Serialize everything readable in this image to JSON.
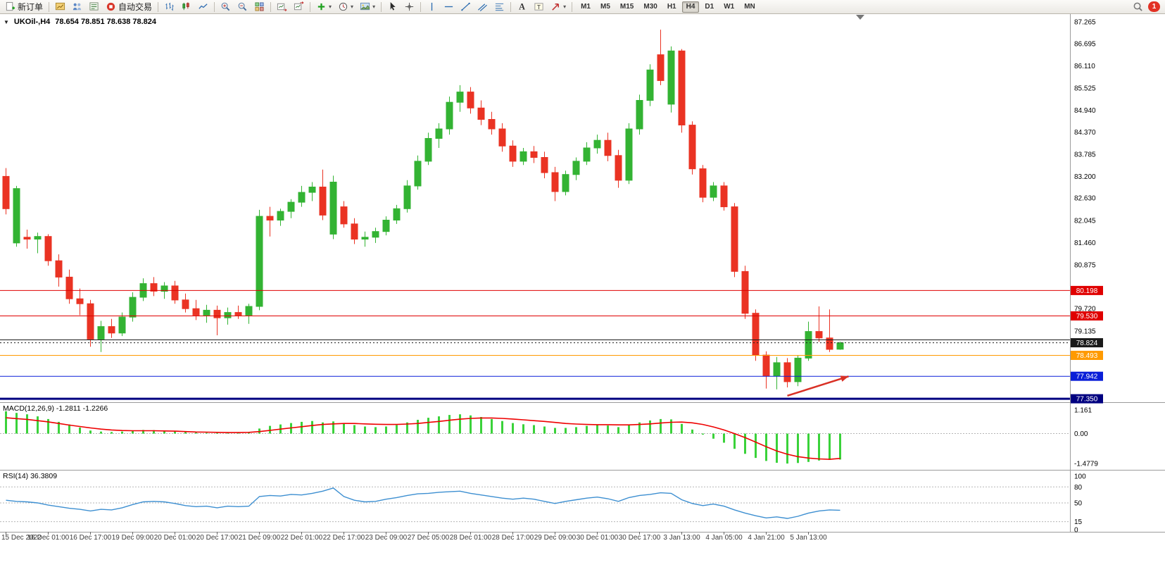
{
  "toolbar": {
    "new_order_label": "新订单",
    "autotrade_label": "自动交易",
    "timeframes": [
      "M1",
      "M5",
      "M15",
      "M30",
      "H1",
      "H4",
      "D1",
      "W1",
      "MN"
    ],
    "active_timeframe": "H4",
    "notification_badge": "1"
  },
  "chart_header": {
    "collapse_arrow": "▼",
    "symbol_period": "UKOil-,H4",
    "ohlc": "78.654 78.851 78.638 78.824"
  },
  "colors": {
    "bull": "#33b333",
    "bear": "#ea3323",
    "macd_bar": "#3ad23a",
    "macd_signal": "#ee0000",
    "rsi_line": "#3d8fd1",
    "arrow": "#d93025",
    "level_red": "#e00000",
    "level_orange": "#ff9a00",
    "level_blue": "#0a1fd8",
    "level_navy": "#000080"
  },
  "chart_data": [
    {
      "type": "candlestick",
      "symbol": "UKOil-",
      "period": "H4",
      "y_range": [
        77.26,
        87.47
      ],
      "y_axis_labels": [
        "87.265",
        "86.695",
        "86.110",
        "85.525",
        "84.940",
        "84.370",
        "83.785",
        "83.200",
        "82.630",
        "82.045",
        "81.460",
        "80.875",
        "79.720",
        "79.135"
      ],
      "x_label_every": 4,
      "x_labels": [
        "15 Dec 2022",
        "16 Dec 01:00",
        "16 Dec 17:00",
        "19 Dec 09:00",
        "20 Dec 01:00",
        "20 Dec 17:00",
        "21 Dec 09:00",
        "22 Dec 01:00",
        "22 Dec 17:00",
        "23 Dec 09:00",
        "27 Dec 05:00",
        "28 Dec 01:00",
        "28 Dec 17:00",
        "29 Dec 09:00",
        "30 Dec 01:00",
        "30 Dec 17:00",
        "3 Jan 13:00",
        "4 Jan 05:00",
        "4 Jan 21:00",
        "5 Jan 13:00"
      ],
      "candles": [
        [
          83.2,
          83.42,
          82.2,
          82.35
        ],
        [
          81.45,
          82.95,
          81.35,
          82.88
        ],
        [
          81.6,
          81.8,
          81.3,
          81.55
        ],
        [
          81.55,
          81.72,
          81.18,
          81.62
        ],
        [
          81.62,
          81.68,
          80.85,
          80.98
        ],
        [
          80.98,
          81.15,
          80.3,
          80.55
        ],
        [
          80.55,
          80.75,
          79.85,
          79.98
        ],
        [
          79.98,
          80.25,
          79.55,
          79.85
        ],
        [
          79.85,
          79.95,
          78.72,
          78.92
        ],
        [
          78.92,
          79.4,
          78.58,
          79.25
        ],
        [
          79.25,
          79.45,
          78.95,
          79.08
        ],
        [
          79.08,
          79.62,
          79.0,
          79.5
        ],
        [
          79.5,
          80.15,
          79.38,
          80.02
        ],
        [
          80.02,
          80.52,
          79.92,
          80.38
        ],
        [
          80.38,
          80.55,
          80.05,
          80.18
        ],
        [
          80.18,
          80.42,
          79.98,
          80.32
        ],
        [
          80.32,
          80.45,
          79.85,
          79.95
        ],
        [
          79.95,
          80.12,
          79.62,
          79.72
        ],
        [
          79.72,
          79.95,
          79.42,
          79.55
        ],
        [
          79.55,
          79.82,
          79.35,
          79.68
        ],
        [
          79.68,
          79.8,
          79.02,
          79.48
        ],
        [
          79.48,
          79.75,
          79.3,
          79.62
        ],
        [
          79.62,
          79.8,
          79.45,
          79.55
        ],
        [
          79.55,
          79.85,
          79.32,
          79.78
        ],
        [
          79.78,
          82.32,
          79.68,
          82.15
        ],
        [
          82.15,
          82.4,
          81.62,
          82.05
        ],
        [
          82.05,
          82.35,
          81.9,
          82.28
        ],
        [
          82.28,
          82.6,
          82.1,
          82.52
        ],
        [
          82.52,
          82.95,
          82.4,
          82.78
        ],
        [
          82.78,
          83.05,
          82.55,
          82.92
        ],
        [
          82.92,
          83.38,
          82.05,
          82.18
        ],
        [
          81.68,
          83.22,
          81.55,
          83.05
        ],
        [
          82.4,
          82.55,
          81.85,
          81.95
        ],
        [
          81.95,
          82.1,
          81.42,
          81.55
        ],
        [
          81.55,
          81.75,
          81.35,
          81.6
        ],
        [
          81.6,
          81.85,
          81.45,
          81.75
        ],
        [
          81.75,
          82.15,
          81.65,
          82.05
        ],
        [
          82.05,
          82.45,
          81.95,
          82.35
        ],
        [
          82.35,
          83.1,
          82.25,
          82.95
        ],
        [
          82.95,
          83.75,
          82.85,
          83.6
        ],
        [
          83.6,
          84.35,
          83.5,
          84.2
        ],
        [
          84.2,
          84.6,
          83.95,
          84.45
        ],
        [
          84.45,
          85.3,
          84.3,
          85.15
        ],
        [
          85.15,
          85.6,
          84.9,
          85.42
        ],
        [
          85.42,
          85.55,
          84.85,
          85.0
        ],
        [
          85.0,
          85.2,
          84.55,
          84.7
        ],
        [
          84.7,
          84.9,
          84.3,
          84.45
        ],
        [
          84.45,
          84.6,
          83.85,
          84.0
        ],
        [
          84.0,
          84.15,
          83.45,
          83.6
        ],
        [
          83.6,
          83.95,
          83.5,
          83.85
        ],
        [
          83.85,
          84.0,
          83.55,
          83.7
        ],
        [
          83.7,
          83.85,
          83.15,
          83.3
        ],
        [
          83.3,
          83.45,
          82.55,
          82.8
        ],
        [
          82.8,
          83.35,
          82.7,
          83.25
        ],
        [
          83.25,
          83.7,
          83.1,
          83.6
        ],
        [
          83.6,
          84.1,
          83.5,
          83.95
        ],
        [
          83.95,
          84.3,
          83.8,
          84.15
        ],
        [
          84.15,
          84.35,
          83.6,
          83.75
        ],
        [
          83.75,
          83.9,
          82.9,
          83.1
        ],
        [
          83.1,
          84.6,
          83.0,
          84.45
        ],
        [
          84.45,
          85.35,
          84.3,
          85.2
        ],
        [
          85.2,
          86.15,
          85.05,
          86.0
        ],
        [
          86.4,
          87.06,
          85.6,
          85.72
        ],
        [
          85.1,
          86.62,
          84.88,
          86.5
        ],
        [
          86.5,
          86.55,
          84.35,
          84.55
        ],
        [
          84.55,
          84.65,
          83.25,
          83.4
        ],
        [
          83.4,
          83.5,
          82.52,
          82.65
        ],
        [
          82.65,
          83.05,
          82.55,
          82.95
        ],
        [
          82.95,
          83.05,
          82.3,
          82.4
        ],
        [
          82.4,
          82.5,
          80.55,
          80.7
        ],
        [
          80.7,
          80.85,
          79.45,
          79.6
        ],
        [
          79.6,
          79.7,
          78.35,
          78.5
        ],
        [
          78.5,
          78.6,
          77.62,
          77.95
        ],
        [
          77.95,
          78.45,
          77.6,
          78.3
        ],
        [
          78.3,
          78.42,
          77.65,
          77.8
        ],
        [
          77.8,
          78.5,
          77.68,
          78.42
        ],
        [
          78.42,
          79.38,
          78.35,
          79.12
        ],
        [
          79.12,
          79.78,
          78.85,
          78.95
        ],
        [
          78.95,
          79.7,
          78.58,
          78.65
        ],
        [
          78.654,
          78.851,
          78.638,
          78.824
        ]
      ],
      "h_lines": [
        {
          "price": 80.198,
          "label": "80.198",
          "color": "#e00000"
        },
        {
          "price": 79.53,
          "label": "79.530",
          "color": "#e00000"
        },
        {
          "price": 78.9,
          "label": null,
          "color": "#1a1a1a"
        },
        {
          "price": 78.824,
          "label": "78.824",
          "color": "#1a1a1a",
          "style": "dotted"
        },
        {
          "price": 78.493,
          "label": "78.493",
          "color": "#ff9a00"
        },
        {
          "price": 77.942,
          "label": "77.942",
          "color": "#0a1fd8"
        },
        {
          "price": 77.35,
          "label": "77.350",
          "color": "#000080",
          "thick": 3
        }
      ],
      "current_price": 78.824,
      "annotation_arrow": {
        "x1_index": 74.0,
        "y1_price": 77.43,
        "x2_index": 79.8,
        "y2_price": 77.94
      },
      "shift_marker_index": 80.9
    },
    {
      "type": "macd",
      "label": "MACD(12,26,9) -1.2811 -1.2266",
      "y_labels": [
        "1.161",
        "0.00",
        "-1.4779"
      ],
      "y_range": [
        -1.79,
        1.55
      ],
      "histogram": [
        1.1,
        1.02,
        0.95,
        0.85,
        0.72,
        0.58,
        0.45,
        0.3,
        0.15,
        0.1,
        0.08,
        0.1,
        0.15,
        0.18,
        0.17,
        0.15,
        0.12,
        0.08,
        0.05,
        0.04,
        0.03,
        0.04,
        0.05,
        0.06,
        0.25,
        0.38,
        0.45,
        0.52,
        0.58,
        0.62,
        0.55,
        0.6,
        0.52,
        0.42,
        0.35,
        0.32,
        0.35,
        0.42,
        0.55,
        0.68,
        0.78,
        0.85,
        0.92,
        0.95,
        0.9,
        0.82,
        0.72,
        0.62,
        0.52,
        0.46,
        0.42,
        0.35,
        0.28,
        0.28,
        0.32,
        0.38,
        0.42,
        0.4,
        0.32,
        0.42,
        0.55,
        0.65,
        0.72,
        0.7,
        0.48,
        0.2,
        -0.05,
        -0.25,
        -0.45,
        -0.75,
        -1.0,
        -1.2,
        -1.35,
        -1.44,
        -1.48,
        -1.45,
        -1.4,
        -1.33,
        -1.3,
        -1.2811
      ],
      "signal": [
        0.78,
        0.74,
        0.7,
        0.64,
        0.58,
        0.5,
        0.42,
        0.35,
        0.28,
        0.22,
        0.18,
        0.15,
        0.14,
        0.14,
        0.14,
        0.13,
        0.12,
        0.1,
        0.08,
        0.07,
        0.06,
        0.05,
        0.05,
        0.06,
        0.1,
        0.16,
        0.22,
        0.28,
        0.34,
        0.4,
        0.45,
        0.48,
        0.5,
        0.5,
        0.48,
        0.46,
        0.45,
        0.45,
        0.47,
        0.5,
        0.55,
        0.6,
        0.66,
        0.71,
        0.75,
        0.77,
        0.77,
        0.75,
        0.72,
        0.68,
        0.64,
        0.6,
        0.55,
        0.5,
        0.47,
        0.45,
        0.44,
        0.44,
        0.43,
        0.43,
        0.45,
        0.48,
        0.52,
        0.56,
        0.57,
        0.53,
        0.45,
        0.33,
        0.18,
        0.0,
        -0.2,
        -0.42,
        -0.65,
        -0.86,
        -1.02,
        -1.14,
        -1.21,
        -1.25,
        -1.27,
        -1.2266
      ]
    },
    {
      "type": "rsi",
      "label": "RSI(14) 36.3809",
      "y_labels": [
        "100",
        "80",
        "50",
        "15",
        "0"
      ],
      "levels": [
        80,
        50,
        15
      ],
      "y_range": [
        -4,
        112
      ],
      "values": [
        55,
        53,
        52,
        50,
        46,
        43,
        40,
        38,
        35,
        38,
        37,
        41,
        47,
        52,
        53,
        52,
        49,
        45,
        43,
        44,
        41,
        44,
        43,
        44,
        62,
        64,
        63,
        66,
        65,
        68,
        72,
        78,
        62,
        55,
        52,
        53,
        57,
        60,
        64,
        67,
        68,
        70,
        71,
        72,
        68,
        65,
        62,
        59,
        57,
        59,
        57,
        53,
        49,
        53,
        56,
        59,
        61,
        58,
        53,
        60,
        64,
        66,
        69,
        68,
        56,
        49,
        45,
        48,
        44,
        37,
        31,
        26,
        22,
        24,
        21,
        25,
        31,
        35,
        37,
        36.4
      ]
    }
  ]
}
